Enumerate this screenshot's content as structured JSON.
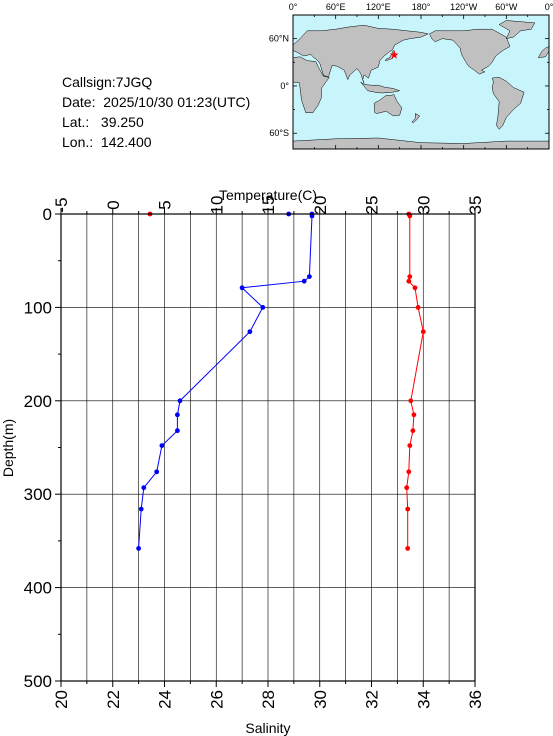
{
  "info": {
    "callsign": "Callsign:7JGQ",
    "date": "Date:  2025/10/30 01:23(UTC)",
    "lat": "Lat.:   39.250",
    "lon": "Lon.:  142.400"
  },
  "map": {
    "lon_labels": [
      "0°",
      "60°E",
      "120°E",
      "180°",
      "120°W",
      "60°W",
      "0°"
    ],
    "lat_labels": [
      "60°N",
      "0°",
      "60°S"
    ],
    "station": {
      "lat": 39.25,
      "lon": 142.4
    },
    "colors": {
      "ocean": "#c8f4fc",
      "land": "#c0c0c0",
      "marker": "#ff0000"
    }
  },
  "chart_data": {
    "type": "line",
    "ylabel": "Depth(m)",
    "ylim": [
      0,
      500
    ],
    "y_inverted": true,
    "y_ticks": [
      0,
      100,
      200,
      300,
      400,
      500
    ],
    "temperature_axis": {
      "label": "Temperature(C)",
      "position": "top",
      "range": [
        -5,
        35
      ],
      "ticks": [
        -5,
        0,
        5,
        10,
        15,
        20,
        25,
        30,
        35
      ]
    },
    "salinity_axis": {
      "label": "Salinity",
      "position": "bottom",
      "range": [
        20,
        36
      ],
      "ticks": [
        20,
        22,
        24,
        26,
        28,
        30,
        32,
        34,
        36
      ]
    },
    "grid": true,
    "series": [
      {
        "axis": "temperature",
        "color": "#ff0000",
        "points": [
          [
            3.6,
            0
          ],
          [
            28.6,
            0
          ],
          [
            28.7,
            2
          ],
          [
            28.7,
            67
          ],
          [
            28.6,
            72
          ],
          [
            29.2,
            79
          ],
          [
            29.5,
            100
          ],
          [
            30.0,
            126
          ],
          [
            28.8,
            200
          ],
          [
            29.1,
            215
          ],
          [
            29.0,
            232
          ],
          [
            28.7,
            248
          ],
          [
            28.6,
            276
          ],
          [
            28.4,
            293
          ],
          [
            28.5,
            316
          ],
          [
            28.5,
            358
          ]
        ]
      },
      {
        "axis": "salinity",
        "color": "#0000ff",
        "points": [
          [
            28.8,
            0
          ],
          [
            29.7,
            0
          ],
          [
            29.7,
            2
          ],
          [
            29.6,
            67
          ],
          [
            29.4,
            72
          ],
          [
            27.0,
            79
          ],
          [
            27.8,
            100
          ],
          [
            27.3,
            126
          ],
          [
            24.6,
            200
          ],
          [
            24.5,
            215
          ],
          [
            24.5,
            232
          ],
          [
            23.9,
            248
          ],
          [
            23.7,
            276
          ],
          [
            23.2,
            293
          ],
          [
            23.1,
            316
          ],
          [
            23.0,
            358
          ]
        ]
      }
    ]
  }
}
